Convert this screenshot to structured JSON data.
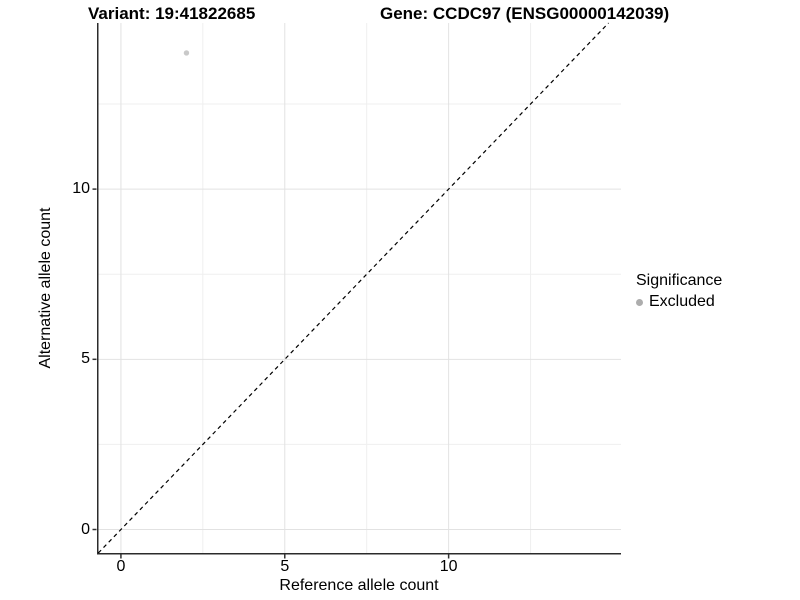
{
  "titles": {
    "variant": "Variant: 19:41822685",
    "gene": "Gene: CCDC97 (ENSG00000142039)"
  },
  "axes": {
    "x": {
      "label": "Reference allele count"
    },
    "y": {
      "label": "Alternative allele count"
    }
  },
  "legend": {
    "title": "Significance",
    "items": [
      {
        "label": "Excluded",
        "color": "#adadad"
      }
    ]
  },
  "chart_data": {
    "type": "scatter",
    "title": "Variant: 19:41822685   Gene: CCDC97 (ENSG00000142039)",
    "xlabel": "Reference allele count",
    "ylabel": "Alternative allele count",
    "xlim": [
      -0.73,
      15.26
    ],
    "ylim": [
      -0.69,
      14.88
    ],
    "x_major_ticks": [
      0,
      5,
      10
    ],
    "x_minor_ticks": [
      2.5,
      7.5,
      12.5
    ],
    "y_major_ticks": [
      0,
      5,
      10
    ],
    "y_minor_ticks": [
      2.5,
      7.5,
      12.5
    ],
    "grid": true,
    "legend_position": "right",
    "series": [
      {
        "name": "Excluded",
        "color": "#c9c9c9",
        "points": [
          {
            "x": 2,
            "y": 14
          }
        ]
      }
    ],
    "reference_line": {
      "type": "identity y=x",
      "style": "dashed",
      "color": "#000000"
    }
  },
  "colors": {
    "background": "#ffffff",
    "grid_major": "#e2e2e2",
    "grid_minor": "#efefef",
    "axis_line": "#2b2b2b",
    "tick_mark": "#333333",
    "point": "#c9c9c9",
    "legend_point": "#adadad",
    "dashed_line": "#000000",
    "text": "#000000"
  }
}
